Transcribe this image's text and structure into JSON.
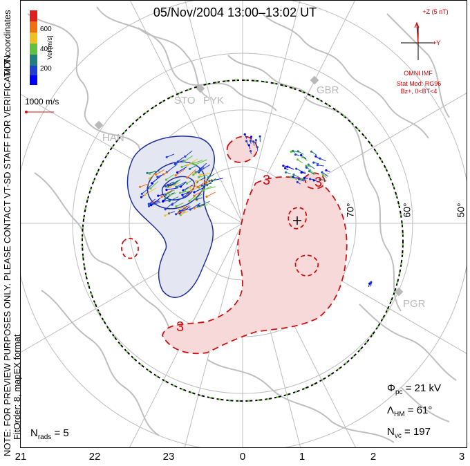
{
  "title": "05/Nov/2004 13:00–13:02 UT",
  "side_note": "NOTE: FOR PREVIEW PURPOSES ONLY. PLEASE CONTACT VT-SD STAFF FOR VERIFICATION.",
  "side_fitorder": "FitOrder: 8, mapEX format",
  "side_mlt": "MLT coordinates",
  "colorbar": {
    "title": "Vel [m/s]",
    "ticks": [
      "600",
      "400",
      "200"
    ],
    "colors": [
      "#e02020",
      "#f07010",
      "#f0c020",
      "#60c040",
      "#208080",
      "#2040d0",
      "#0000ff"
    ]
  },
  "scale_vector": "1000 m/s",
  "imf": {
    "z_label": "+Z (5 nT)",
    "y_label": "+Y",
    "source": "OMNI IMF",
    "model": "Stat Mod: RG96",
    "condition": "Bz+, 0<BT<4"
  },
  "stations": [
    "STO",
    "PYK",
    "GBR",
    "HAN",
    "PGR"
  ],
  "latitudes": [
    "70°",
    "60°",
    "50°"
  ],
  "contour_labels": [
    "3",
    "3",
    "3"
  ],
  "stats": {
    "phi_symbol": "Φ",
    "phi_sub": "pc",
    "phi_value": "= 21 kV",
    "lambda_symbol": "Λ",
    "lambda_sub": "HM",
    "lambda_value": "= 61°",
    "nvc_symbol": "N",
    "nvc_sub": "vc",
    "nvc_value": "= 197",
    "nrads_symbol": "N",
    "nrads_sub": "rads",
    "nrads_value": "= 5"
  },
  "mlt_ticks": [
    "21",
    "22",
    "23",
    "0",
    "1",
    "2",
    "3"
  ],
  "colors": {
    "coast": "#bfbfbf",
    "negative_cell_fill": "#e4e6f2",
    "negative_cell_line": "#1f2fa0",
    "positive_cell_fill": "#f8d9d9",
    "positive_cell_line": "#d01010",
    "hm_boundary": "#000000",
    "hm_boundary_dash": "#7ed957"
  }
}
